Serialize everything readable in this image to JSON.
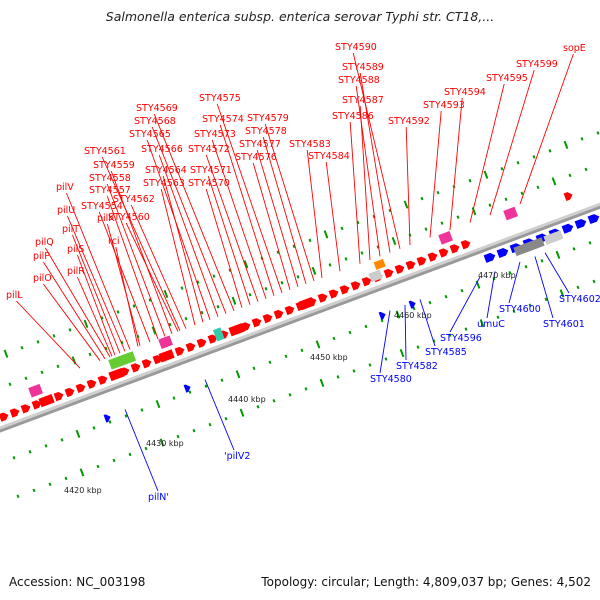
{
  "title": "Salmonella enterica subsp. enterica serovar Typhi str. CT18,...",
  "footer": {
    "accession": "Accession: NC_003198",
    "summary": "Topology: circular; Length: 4,809,037 bp; Genes: 4,502"
  },
  "colors": {
    "forward": "#ff0000",
    "reverse": "#0000ff",
    "tick": "#009900"
  },
  "ruler": [
    "4420 kbp",
    "4430 kbp",
    "4440 kbp",
    "4450 kbp",
    "4460 kbp",
    "4470 kbp"
  ],
  "red_labels": [
    "pilL",
    "pilO",
    "pilP",
    "pilQ",
    "pilS",
    "pilR",
    "pilT",
    "pilU",
    "pilV",
    "pilK",
    "rci",
    "STY4554",
    "STY4557",
    "STY4558",
    "STY4559",
    "STY4561",
    "STY4560",
    "STY4562",
    "STY4563",
    "STY4564",
    "STY4565",
    "STY4566",
    "STY4568",
    "STY4569",
    "STY4570",
    "STY4571",
    "STY4572",
    "STY4573",
    "STY4574",
    "STY4575",
    "STY4576",
    "STY4577",
    "STY4578",
    "STY4579",
    "STY4583",
    "STY4584",
    "STY4586",
    "STY4587",
    "STY4588",
    "STY4589",
    "STY4590",
    "STY4592",
    "STY4593",
    "STY4594",
    "STY4595",
    "STY4599",
    "sopE"
  ],
  "blue_labels": [
    "pilN'",
    "'pilV2",
    "STY4580",
    "STY4582",
    "STY4585",
    "STY4596",
    "umuC",
    "STY4600",
    "STY4601",
    "STY4602"
  ]
}
